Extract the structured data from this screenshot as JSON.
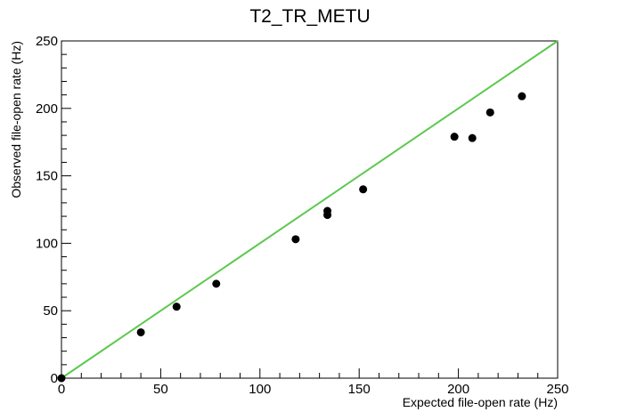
{
  "chart_data": {
    "type": "scatter",
    "title": "T2_TR_METU",
    "xlabel": "Expected file-open rate (Hz)",
    "ylabel": "Observed file-open rate (Hz)",
    "xlim": [
      0,
      250
    ],
    "ylim": [
      0,
      250
    ],
    "x_ticks": [
      "0",
      "50",
      "100",
      "150",
      "200",
      "250"
    ],
    "y_ticks": [
      "0",
      "50",
      "100",
      "150",
      "200",
      "250"
    ],
    "grid": false,
    "reference_line": {
      "x": [
        0,
        250
      ],
      "y": [
        0,
        250
      ],
      "color": "#5cc94e"
    },
    "series": [
      {
        "marker_color": "#000000",
        "points": [
          {
            "x": 0,
            "y": 0
          },
          {
            "x": 40,
            "y": 34
          },
          {
            "x": 58,
            "y": 53
          },
          {
            "x": 78,
            "y": 70
          },
          {
            "x": 118,
            "y": 103
          },
          {
            "x": 134,
            "y": 121
          },
          {
            "x": 134,
            "y": 124
          },
          {
            "x": 152,
            "y": 140
          },
          {
            "x": 198,
            "y": 179
          },
          {
            "x": 207,
            "y": 178
          },
          {
            "x": 216,
            "y": 197
          },
          {
            "x": 232,
            "y": 209
          }
        ]
      }
    ]
  }
}
